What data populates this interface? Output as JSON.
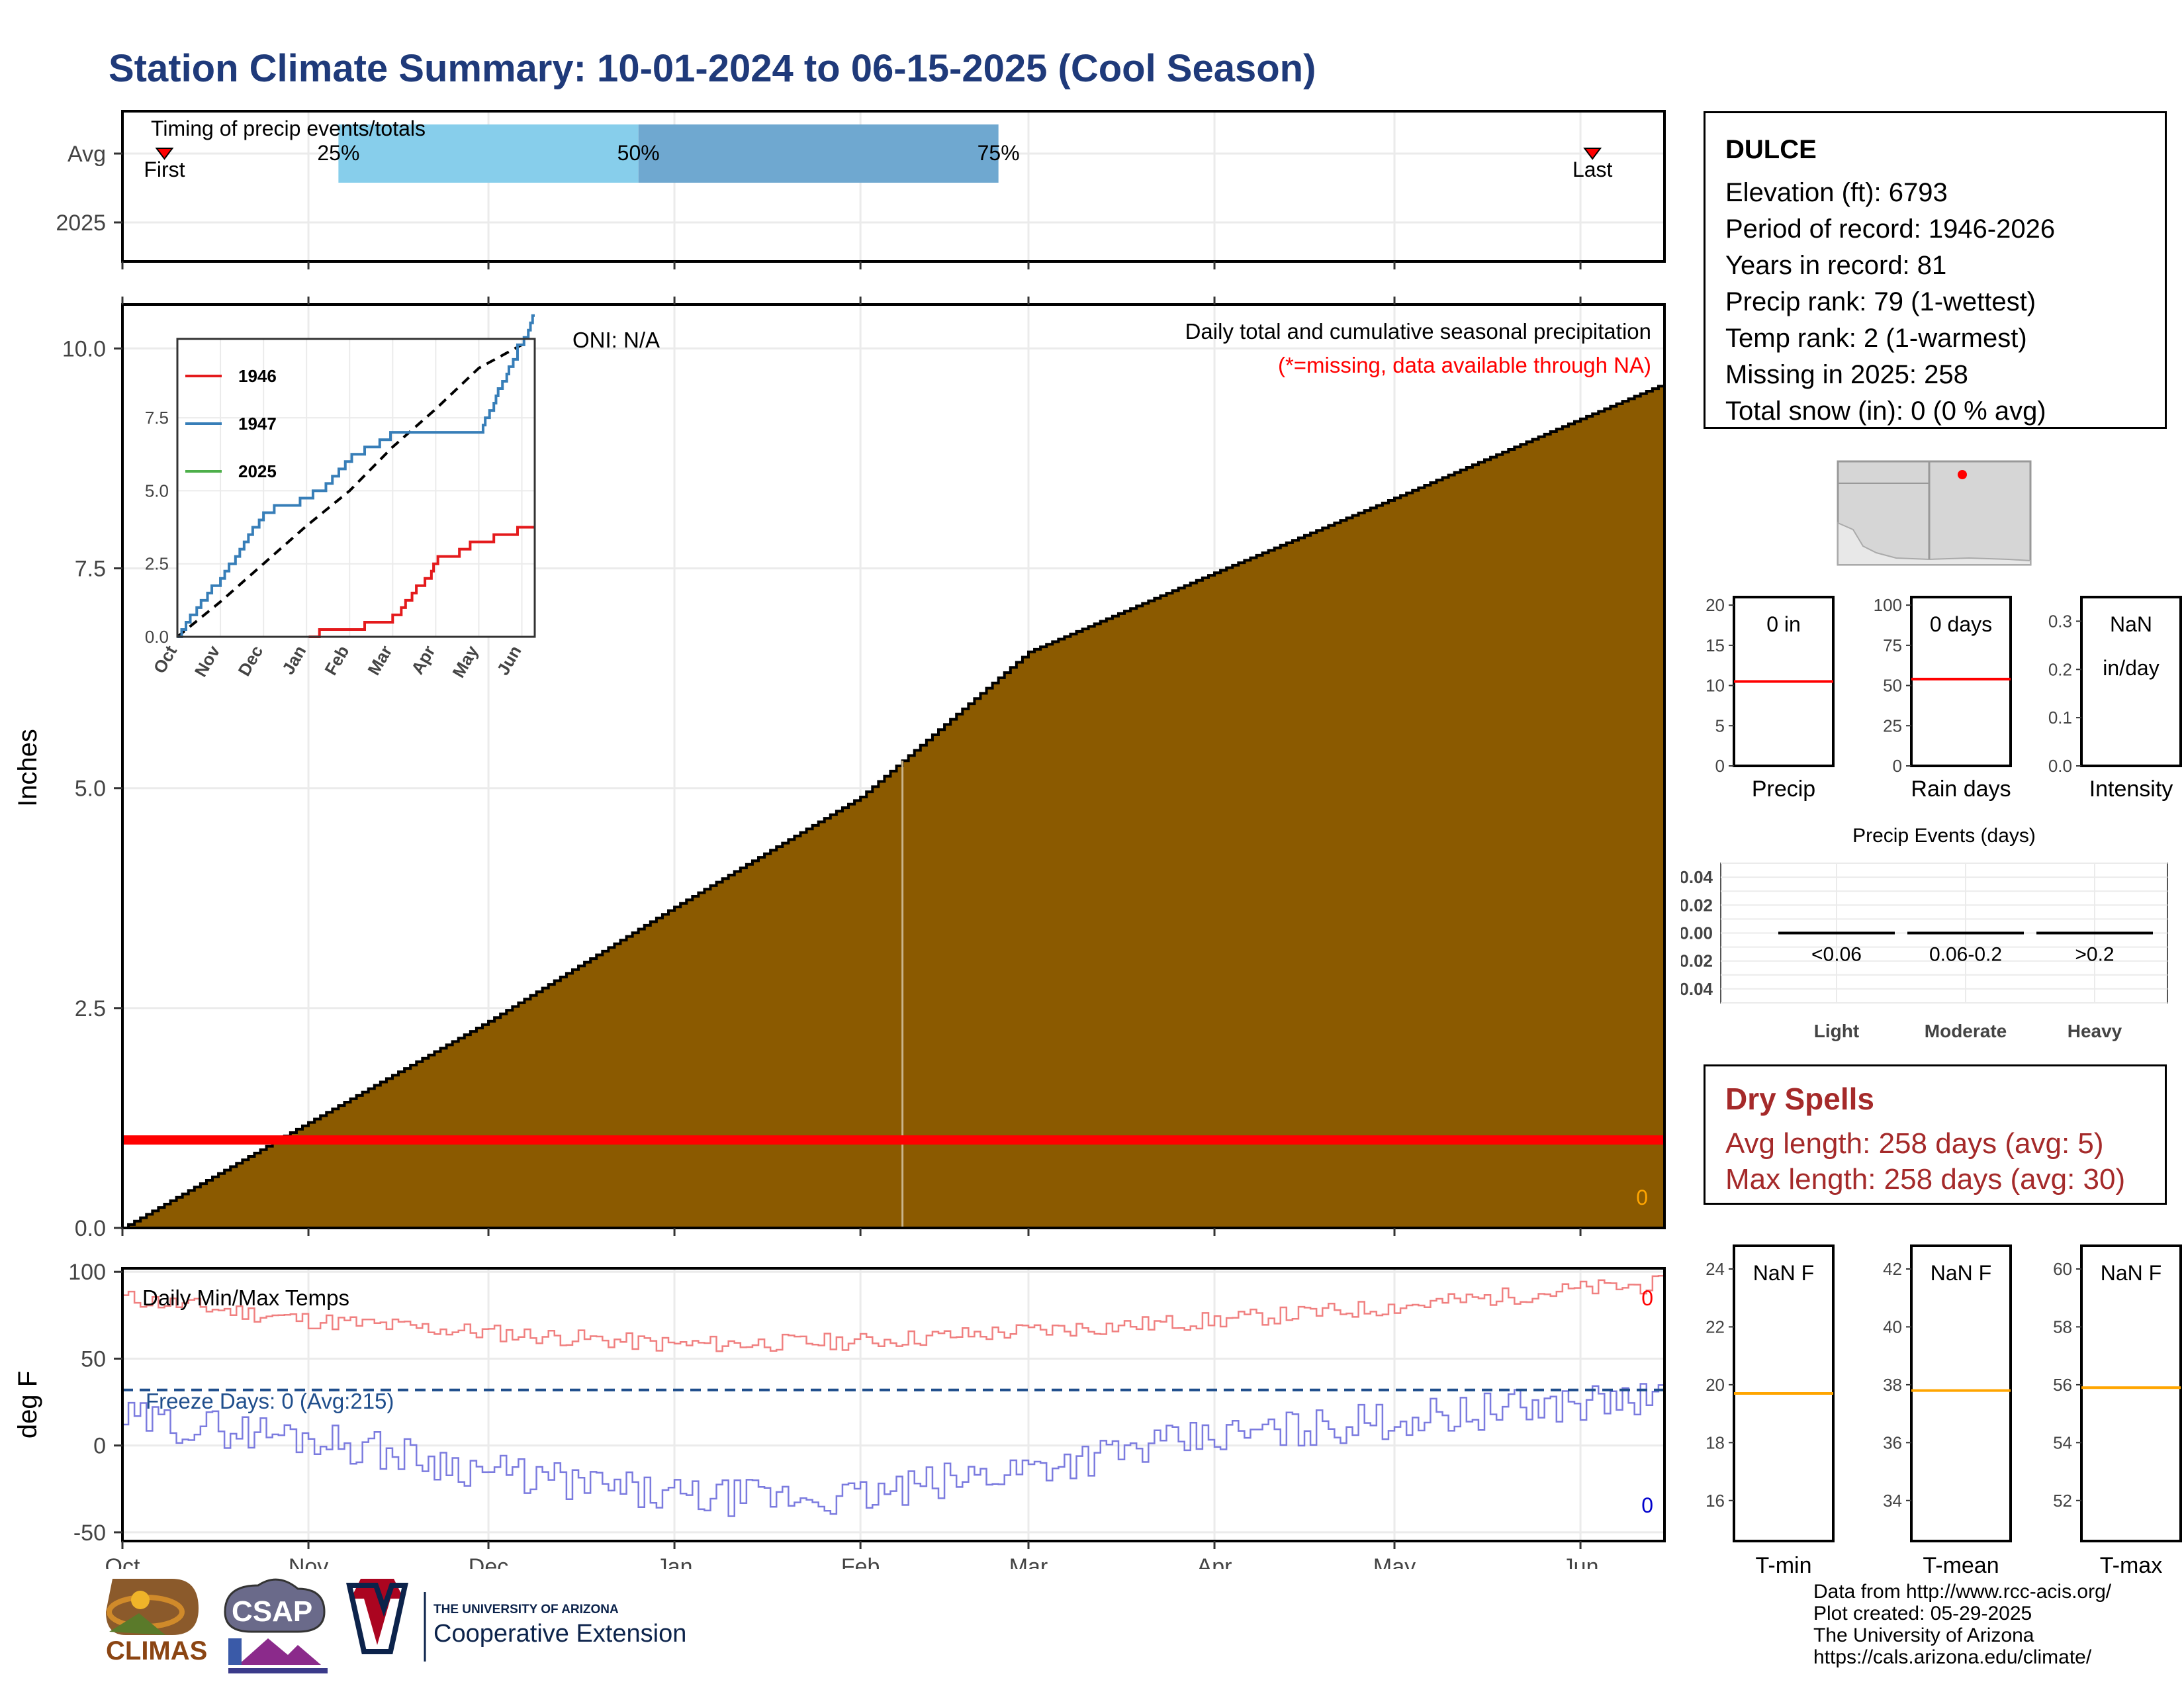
{
  "title": "Station Climate Summary: 10-01-2024 to 06-15-2025 (Cool Season)",
  "timing": {
    "label": "Timing of precip events/totals",
    "rows": [
      "Avg",
      "2025"
    ],
    "first_label": "First",
    "last_label": "Last",
    "q25_label": "25%",
    "q50_label": "50%",
    "q75_label": "75%",
    "quantile_dates": {
      "first": "2024-10-08",
      "q25": "2024-11-06",
      "q50": "2024-12-26",
      "q75": "2025-02-24",
      "last": "2025-06-03"
    },
    "colors": {
      "light": "#87ceeb",
      "dark": "#6fa8d0",
      "marker": "#ff0000"
    }
  },
  "oni": "ONI: N/A",
  "precip_panel": {
    "label": "Daily total and cumulative seasonal precipitation",
    "missing_note": "(*=missing, data available through NA)",
    "count_label": "0",
    "ylabel": "Inches",
    "yticks": [
      "0.0",
      "2.5",
      "5.0",
      "7.5",
      "10.0"
    ],
    "colors": {
      "fill": "#8b5a00",
      "missing": "#ff0000",
      "count": "#ffa500"
    }
  },
  "month_ticks": [
    "Oct",
    "Nov",
    "Dec",
    "Jan",
    "Feb",
    "Mar",
    "Apr",
    "May",
    "Jun"
  ],
  "inset": {
    "legend": [
      {
        "name": "1946",
        "color": "#e41a1c"
      },
      {
        "name": "1947",
        "color": "#377eb8"
      },
      {
        "name": "2025",
        "color": "#4daf4a"
      }
    ],
    "yticks": [
      "0.0",
      "2.5",
      "5.0",
      "7.5"
    ],
    "xticks": [
      "Oct",
      "Nov",
      "Dec",
      "Jan",
      "Feb",
      "Mar",
      "Apr",
      "May",
      "Jun"
    ]
  },
  "temp_panel": {
    "label": "Daily Min/Max Temps",
    "freeze_label": "Freeze Days: 0 (Avg:215)",
    "ylabel": "deg F",
    "yticks": [
      "-50",
      "0",
      "50",
      "100"
    ],
    "max_count": "0",
    "min_count": "0",
    "colors": {
      "max": "#f08080",
      "min": "#7b7bdf",
      "freeze": "#1f4e8c"
    }
  },
  "station": {
    "name": "DULCE",
    "lines": [
      "Elevation (ft): 6793",
      "Period of record: 1946-2026",
      "Years in record: 81",
      "Precip rank: 79 (1-wettest)",
      "Temp rank: 2 (1-warmest)",
      "Missing in 2025: 258",
      "Total snow (in): 0 (0 % avg)"
    ]
  },
  "mini_precip": [
    {
      "value_label": "0 in",
      "sub_label": "",
      "axis_label": "Precip",
      "yticks": [
        "0",
        "5",
        "10",
        "15",
        "20"
      ],
      "avg": 10.5,
      "ymax": 21
    },
    {
      "value_label": "0 days",
      "sub_label": "",
      "axis_label": "Rain days",
      "yticks": [
        "0",
        "25",
        "50",
        "75",
        "100"
      ],
      "avg": 54,
      "ymax": 105
    },
    {
      "value_label": "NaN",
      "sub_label": "in/day",
      "axis_label": "Intensity",
      "yticks": [
        "0.0",
        "0.1",
        "0.2",
        "0.3"
      ],
      "avg": null,
      "ymax": 0.35
    }
  ],
  "events": {
    "title": "Precip Events (days)",
    "yticks": [
      "0.04",
      "0.02",
      "0.00",
      "-0.02",
      "-0.04"
    ],
    "categories": [
      "Light",
      "Moderate",
      "Heavy"
    ],
    "ranges": [
      "<0.06",
      "0.06-0.2",
      ">0.2"
    ]
  },
  "dry_spells": {
    "title": "Dry Spells",
    "avg": "Avg length: 258 days (avg: 5)",
    "max": "Max length: 258 days (avg: 30)"
  },
  "mini_temp": [
    {
      "value_label": "NaN F",
      "axis_label": "T-min",
      "yticks": [
        "16",
        "18",
        "20",
        "22",
        "24"
      ],
      "avg": 19.7
    },
    {
      "value_label": "NaN F",
      "axis_label": "T-mean",
      "yticks": [
        "34",
        "36",
        "38",
        "40",
        "42"
      ],
      "avg": 37.8
    },
    {
      "value_label": "NaN F",
      "axis_label": "T-max",
      "yticks": [
        "52",
        "54",
        "56",
        "58",
        "60"
      ],
      "avg": 55.9
    }
  ],
  "footer": [
    "Data from http://www.rcc-acis.org/",
    "Plot created: 05-29-2025",
    "The University of Arizona",
    "https://cals.arizona.edu/climate/"
  ],
  "logos": {
    "climas": "CLIMAS",
    "csap": "CSAP",
    "ua_small": "THE UNIVERSITY OF ARIZONA",
    "ua_big": "Cooperative Extension"
  },
  "chart_data": [
    {
      "type": "area",
      "title": "Daily total and cumulative seasonal precipitation",
      "ylabel": "Inches",
      "ylim": [
        0,
        10.5
      ],
      "x": [
        "2024-10-01",
        "2024-11-01",
        "2024-12-01",
        "2025-01-01",
        "2025-02-01",
        "2025-03-01",
        "2025-04-01",
        "2025-05-01",
        "2025-06-01",
        "2025-06-15"
      ],
      "series": [
        {
          "values": [
            0.0,
            1.2,
            2.35,
            3.65,
            4.9,
            6.55,
            7.45,
            8.3,
            9.2,
            9.6
          ]
        }
      ],
      "missing_marker_y": 1.0
    },
    {
      "type": "line",
      "title": "Daily Min/Max Temps",
      "ylabel": "deg F",
      "ylim": [
        -55,
        102
      ],
      "x": [
        "2024-10-01",
        "2024-11-01",
        "2024-12-01",
        "2025-01-01",
        "2025-02-01",
        "2025-03-01",
        "2025-04-01",
        "2025-05-01",
        "2025-06-01",
        "2025-06-15"
      ],
      "series": [
        {
          "values": [
            85,
            72,
            65,
            58,
            60,
            66,
            72,
            80,
            90,
            93
          ]
        },
        {
          "values": [
            15,
            5,
            -15,
            -30,
            -30,
            -12,
            5,
            15,
            25,
            27
          ]
        }
      ],
      "reference_line": 32
    },
    {
      "type": "line",
      "legend": [
        "1946",
        "1947",
        "2025"
      ],
      "ylim": [
        0,
        10.2
      ],
      "x": [
        "Oct",
        "Nov",
        "Dec",
        "Jan",
        "Feb",
        "Mar",
        "Apr",
        "May",
        "Jun"
      ],
      "series": [
        {
          "name": "1946",
          "values": [
            null,
            null,
            null,
            0.1,
            0.2,
            0.6,
            2.5,
            3.2,
            3.6
          ]
        },
        {
          "name": "1947",
          "values": [
            0.0,
            2.0,
            4.2,
            4.6,
            6.0,
            7.0,
            7.0,
            7.0,
            10.1
          ]
        }
      ],
      "average": [
        0.0,
        1.2,
        2.5,
        3.8,
        5.0,
        6.5,
        7.8,
        9.2,
        10.0
      ]
    },
    {
      "type": "bar",
      "title": "Precip Events (days)",
      "categories": [
        "Light",
        "Moderate",
        "Heavy"
      ],
      "values": [
        0,
        0,
        0
      ],
      "ylim": [
        -0.05,
        0.05
      ]
    }
  ]
}
